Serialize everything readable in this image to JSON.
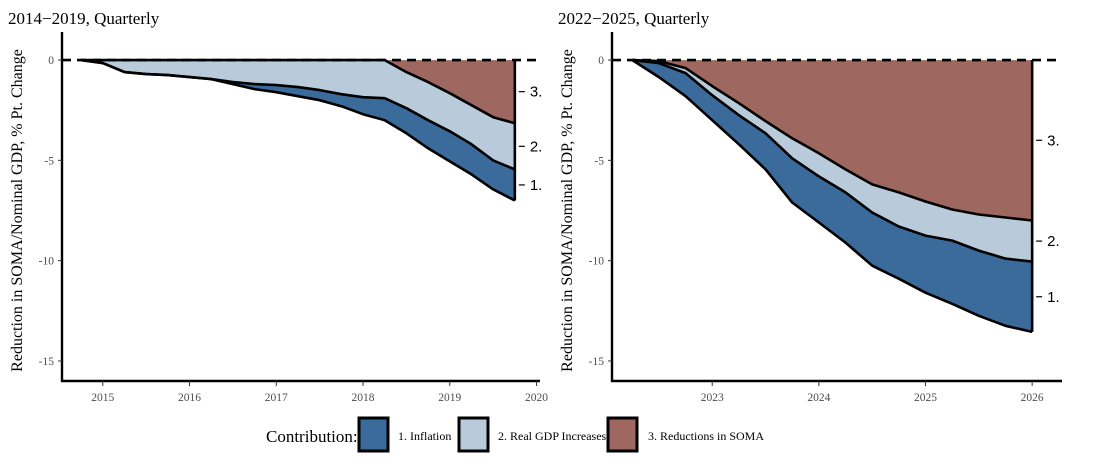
{
  "colors": {
    "inflation": "#3a6b9b",
    "gdp": "#b9cbda",
    "soma": "#9e6861"
  },
  "legend": {
    "title": "Contribution:",
    "items": [
      {
        "key": "inflation",
        "label": "1. Inflation"
      },
      {
        "key": "gdp",
        "label": "2. Real GDP Increases"
      },
      {
        "key": "soma",
        "label": "3. Reductions in SOMA"
      }
    ],
    "placement": "bottom"
  },
  "chart_data": [
    {
      "type": "area",
      "stacked": true,
      "title": "2014−2019, Quarterly",
      "ylabel": "Reduction in SOMA/Nominal GDP, % Pt. Change",
      "xlabel": "",
      "ylim": [
        -16,
        1
      ],
      "xlim": [
        2014.53,
        2020.04
      ],
      "yticks": [
        "0",
        "-5",
        "-10",
        "-15"
      ],
      "xticks": [
        "2015",
        "2016",
        "2017",
        "2018",
        "2019",
        "2020"
      ],
      "grid": false,
      "reference_line": 0,
      "band_labels": [
        "3.",
        "2.",
        "1."
      ],
      "x": [
        2014.75,
        2015.0,
        2015.25,
        2015.5,
        2015.75,
        2016.0,
        2016.25,
        2016.5,
        2016.75,
        2017.0,
        2017.25,
        2017.5,
        2017.75,
        2018.0,
        2018.25,
        2018.5,
        2018.75,
        2019.0,
        2019.25,
        2019.5,
        2019.75
      ],
      "series": [
        {
          "key": "inflation",
          "name": "1. Inflation",
          "values": [
            0,
            0,
            0,
            0,
            0,
            0,
            0,
            -0.1,
            -0.25,
            -0.35,
            -0.45,
            -0.5,
            -0.6,
            -0.85,
            -1.1,
            -1.25,
            -1.4,
            -1.5,
            -1.5,
            -1.45,
            -1.55
          ]
        },
        {
          "key": "gdp",
          "name": "2. Real GDP Increases",
          "values": [
            0,
            -0.15,
            -0.6,
            -0.7,
            -0.75,
            -0.85,
            -0.95,
            -1.1,
            -1.2,
            -1.25,
            -1.35,
            -1.5,
            -1.7,
            -1.85,
            -1.9,
            -1.8,
            -1.9,
            -1.9,
            -1.95,
            -2.15,
            -2.3
          ]
        },
        {
          "key": "soma",
          "name": "3. Reductions in SOMA",
          "values": [
            0,
            0,
            0,
            0,
            0,
            0,
            0,
            0,
            0,
            0,
            0,
            0,
            0,
            0,
            0,
            -0.6,
            -1.1,
            -1.65,
            -2.25,
            -2.85,
            -3.15
          ]
        }
      ]
    },
    {
      "type": "area",
      "stacked": true,
      "title": "2022−2025, Quarterly",
      "ylabel": "Reduction in SOMA/Nominal GDP, % Pt. Change",
      "xlabel": "",
      "ylim": [
        -16,
        1
      ],
      "xlim": [
        2022.06,
        2026.28
      ],
      "yticks": [
        "0",
        "-5",
        "-10",
        "-15"
      ],
      "xticks": [
        "2023",
        "2024",
        "2025",
        "2026"
      ],
      "grid": false,
      "reference_line": 0,
      "band_labels": [
        "3.",
        "2.",
        "1."
      ],
      "x": [
        2022.25,
        2022.5,
        2022.75,
        2023.0,
        2023.25,
        2023.5,
        2023.75,
        2024.0,
        2024.25,
        2024.5,
        2024.75,
        2025.0,
        2025.25,
        2025.5,
        2025.75,
        2026.0
      ],
      "series": [
        {
          "key": "inflation",
          "name": "1. Inflation",
          "values": [
            0,
            -0.7,
            -1.15,
            -1.25,
            -1.45,
            -1.8,
            -2.2,
            -2.3,
            -2.5,
            -2.65,
            -2.6,
            -2.85,
            -3.15,
            -3.25,
            -3.35,
            -3.5
          ]
        },
        {
          "key": "gdp",
          "name": "2. Real GDP Increases",
          "values": [
            0,
            -0.1,
            -0.25,
            -0.45,
            -0.6,
            -0.6,
            -1.0,
            -1.15,
            -1.15,
            -1.4,
            -1.7,
            -1.7,
            -1.55,
            -1.8,
            -2.05,
            -2.05
          ]
        },
        {
          "key": "soma",
          "name": "3. Reductions in SOMA",
          "values": [
            0,
            -0.05,
            -0.4,
            -1.3,
            -2.15,
            -3.05,
            -3.9,
            -4.65,
            -5.45,
            -6.2,
            -6.6,
            -7.05,
            -7.45,
            -7.7,
            -7.85,
            -8.0
          ]
        }
      ]
    }
  ]
}
